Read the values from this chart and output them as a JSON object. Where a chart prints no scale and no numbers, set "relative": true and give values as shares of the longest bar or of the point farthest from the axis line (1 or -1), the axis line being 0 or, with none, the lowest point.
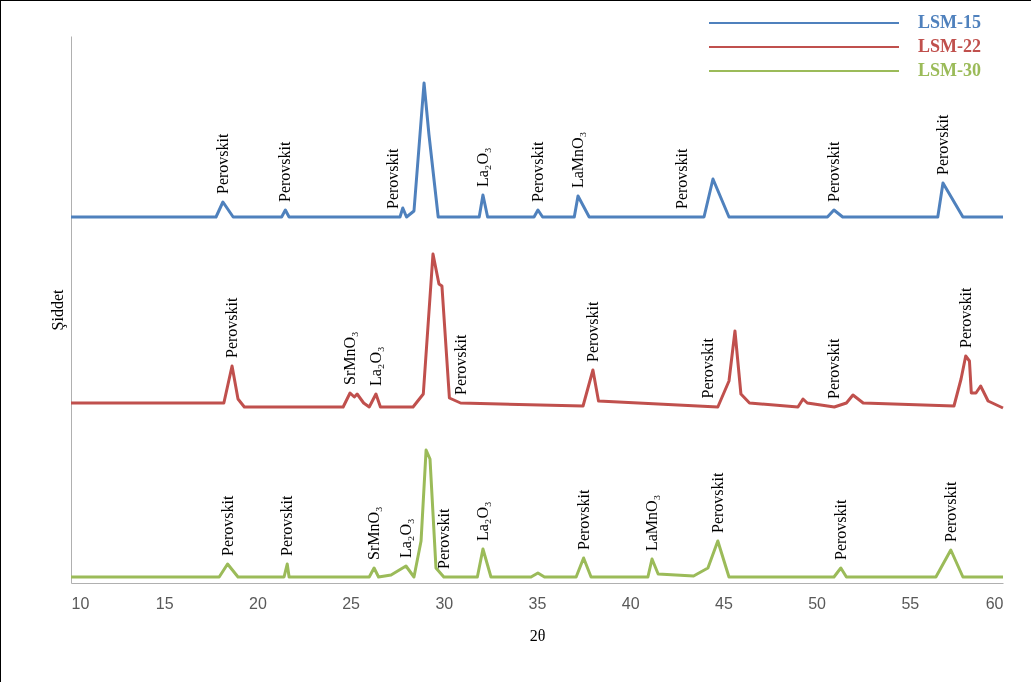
{
  "chart_data": {
    "type": "line",
    "relative": true,
    "xlabel": "2θ",
    "ylabel": "Şiddet",
    "xlim": [
      10,
      60
    ],
    "xticks": [
      10,
      15,
      20,
      25,
      30,
      35,
      40,
      45,
      50,
      55,
      60
    ],
    "grid": false,
    "legend": "top right",
    "marker": "none",
    "line_style": "solid",
    "series": [
      {
        "name": "LSM-15",
        "color": "#4f81bd",
        "x": [
          10,
          17.78,
          18.15,
          18.7,
          21.3,
          21.5,
          21.7,
          27.65,
          27.8,
          28.0,
          28.4,
          28.94,
          29.2,
          29.7,
          31.9,
          32.1,
          32.35,
          34.84,
          35.05,
          35.3,
          37.0,
          37.2,
          37.8,
          43.96,
          44.44,
          45.3,
          50.58,
          50.93,
          51.4,
          56.5,
          56.78,
          57.85,
          60
        ],
        "values": [
          0.732,
          0.732,
          0.762,
          0.732,
          0.732,
          0.746,
          0.732,
          0.732,
          0.75,
          0.732,
          0.744,
          1.0,
          0.898,
          0.732,
          0.732,
          0.776,
          0.732,
          0.732,
          0.746,
          0.732,
          0.732,
          0.774,
          0.732,
          0.732,
          0.808,
          0.732,
          0.732,
          0.746,
          0.732,
          0.732,
          0.8,
          0.732,
          0.732
        ]
      },
      {
        "name": "LSM-22",
        "color": "#c0504d",
        "x": [
          10,
          18.2,
          18.64,
          18.96,
          19.3,
          24.6,
          24.97,
          25.2,
          25.35,
          25.7,
          26.0,
          26.36,
          26.6,
          28.35,
          28.9,
          29.42,
          29.74,
          29.9,
          30.3,
          30.9,
          37.47,
          38.0,
          38.3,
          44.7,
          45.3,
          45.62,
          45.94,
          46.4,
          49.0,
          49.27,
          49.5,
          50.95,
          51.6,
          51.95,
          52.5,
          57.37,
          57.75,
          58.0,
          58.2,
          58.3,
          58.55,
          58.8,
          59.2,
          60
        ],
        "values": [
          0.36,
          0.36,
          0.434,
          0.368,
          0.352,
          0.352,
          0.38,
          0.372,
          0.378,
          0.36,
          0.352,
          0.378,
          0.352,
          0.352,
          0.378,
          0.658,
          0.598,
          0.594,
          0.37,
          0.36,
          0.354,
          0.426,
          0.364,
          0.352,
          0.404,
          0.504,
          0.378,
          0.36,
          0.352,
          0.368,
          0.36,
          0.352,
          0.36,
          0.376,
          0.36,
          0.354,
          0.408,
          0.454,
          0.444,
          0.38,
          0.38,
          0.394,
          0.364,
          0.35
        ]
      },
      {
        "name": "LSM-30",
        "color": "#9bbb59",
        "x": [
          10,
          17.95,
          18.4,
          18.96,
          21.43,
          21.6,
          21.7,
          26.0,
          26.26,
          26.5,
          27.17,
          27.97,
          28.4,
          28.78,
          29.05,
          29.26,
          29.58,
          30.0,
          31.8,
          32.1,
          32.53,
          34.68,
          35.05,
          35.4,
          37.1,
          37.5,
          37.9,
          40.95,
          41.17,
          41.5,
          43.4,
          44.17,
          44.7,
          45.3,
          50.93,
          51.3,
          51.6,
          56.4,
          57.2,
          57.85,
          60
        ],
        "values": [
          0.012,
          0.012,
          0.038,
          0.012,
          0.012,
          0.038,
          0.012,
          0.012,
          0.03,
          0.012,
          0.016,
          0.034,
          0.012,
          0.084,
          0.266,
          0.248,
          0.03,
          0.012,
          0.012,
          0.068,
          0.012,
          0.012,
          0.02,
          0.012,
          0.012,
          0.05,
          0.012,
          0.012,
          0.048,
          0.018,
          0.014,
          0.03,
          0.084,
          0.012,
          0.012,
          0.03,
          0.012,
          0.012,
          0.066,
          0.012,
          0.012
        ]
      }
    ],
    "annotations": [
      {
        "text": "Perovskit",
        "x": 18.15,
        "y": 0.762
      },
      {
        "text": "Perovskit",
        "x": 21.5,
        "y": 0.746
      },
      {
        "text": "Perovskit",
        "x": 27.3,
        "y": 0.732
      },
      {
        "text": "La₂O₃",
        "x": 32.1,
        "y": 0.776
      },
      {
        "text": "Perovskit",
        "x": 35.05,
        "y": 0.746
      },
      {
        "text": "LaMnO₃",
        "x": 37.2,
        "y": 0.774
      },
      {
        "text": "Perovskit",
        "x": 42.8,
        "y": 0.732
      },
      {
        "text": "Perovskit",
        "x": 50.93,
        "y": 0.746
      },
      {
        "text": "Perovskit",
        "x": 56.78,
        "y": 0.8
      },
      {
        "text": "Perovskit",
        "x": 18.64,
        "y": 0.434
      },
      {
        "text": "SrMnO₃",
        "x": 24.97,
        "y": 0.38
      },
      {
        "text": "La₂O₃",
        "x": 26.36,
        "y": 0.378
      },
      {
        "text": "Perovskit",
        "x": 30.9,
        "y": 0.36
      },
      {
        "text": "Perovskit",
        "x": 38.0,
        "y": 0.426
      },
      {
        "text": "Perovskit",
        "x": 44.2,
        "y": 0.353
      },
      {
        "text": "Perovskit",
        "x": 50.95,
        "y": 0.352
      },
      {
        "text": "Perovskit",
        "x": 58.0,
        "y": 0.454
      },
      {
        "text": "Perovskit",
        "x": 18.4,
        "y": 0.038
      },
      {
        "text": "Perovskit",
        "x": 21.6,
        "y": 0.038
      },
      {
        "text": "SrMnO₃",
        "x": 26.26,
        "y": 0.03
      },
      {
        "text": "La₂O₃",
        "x": 27.97,
        "y": 0.034
      },
      {
        "text": "Perovskit",
        "x": 30.0,
        "y": 0.012
      },
      {
        "text": "La₂O₃",
        "x": 32.1,
        "y": 0.068
      },
      {
        "text": "Perovskit",
        "x": 37.5,
        "y": 0.05
      },
      {
        "text": "LaMnO₃",
        "x": 41.17,
        "y": 0.048
      },
      {
        "text": "Perovskit",
        "x": 44.7,
        "y": 0.084
      },
      {
        "text": "Perovskit",
        "x": 51.3,
        "y": 0.03
      },
      {
        "text": "Perovskit",
        "x": 57.2,
        "y": 0.066
      }
    ]
  }
}
